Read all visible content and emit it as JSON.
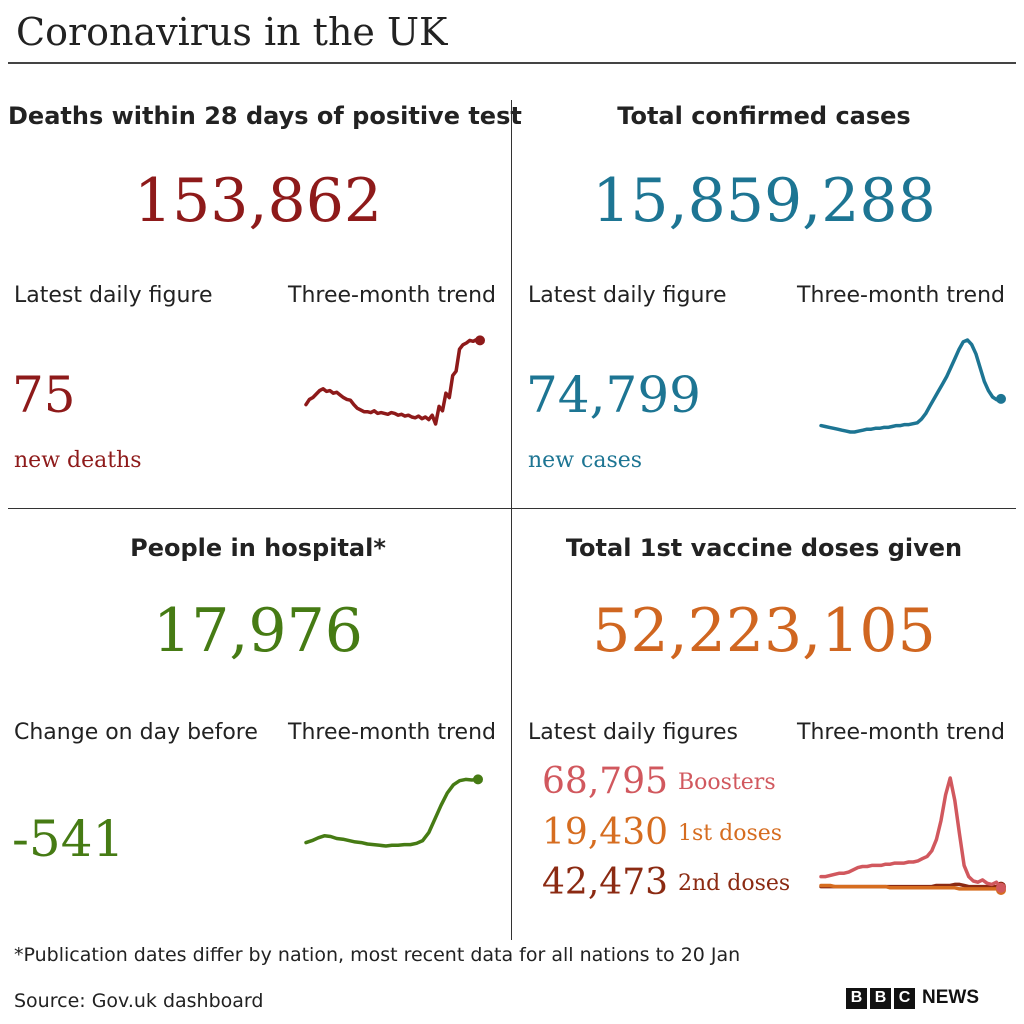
{
  "header": {
    "title": "Coronavirus in the UK"
  },
  "colors": {
    "deaths": "#8e1a1a",
    "cases": "#1d7593",
    "hospital": "#467b14",
    "vaccine": "#d06620",
    "boosters": "#d1585e",
    "first": "#d66d20",
    "second": "#8b2a12"
  },
  "deaths": {
    "heading": "Deaths within 28 days of positive test",
    "total": "153,862",
    "latest_label": "Latest daily figure",
    "trend_label": "Three-month trend",
    "latest_value": "75",
    "latest_unit": "new deaths"
  },
  "cases": {
    "heading": "Total confirmed cases",
    "total": "15,859,288",
    "latest_label": "Latest daily figure",
    "trend_label": "Three-month trend",
    "latest_value": "74,799",
    "latest_unit": "new cases"
  },
  "hospital": {
    "heading": "People in hospital*",
    "total": "17,976",
    "latest_label": "Change on day before",
    "trend_label": "Three-month trend",
    "latest_value": "-541"
  },
  "vaccine": {
    "heading": "Total 1st vaccine doses given",
    "total": "52,223,105",
    "latest_label": "Latest daily figures",
    "trend_label": "Three-month trend",
    "boosters_value": "68,795",
    "boosters_label": "Boosters",
    "first_value": "19,430",
    "first_label": "1st doses",
    "second_value": "42,473",
    "second_label": "2nd doses"
  },
  "footer": {
    "note": "*Publication dates differ by nation, most recent data for all nations to 20 Jan",
    "source": "Source: Gov.uk dashboard",
    "brand_letters": [
      "B",
      "B",
      "C"
    ],
    "brand_word": "NEWS"
  },
  "chart_data": [
    {
      "type": "line",
      "series": [
        {
          "values": [
            0.22,
            0.28,
            0.3,
            0.34,
            0.38,
            0.4,
            0.37,
            0.38,
            0.35,
            0.36,
            0.33,
            0.3,
            0.28,
            0.27,
            0.22,
            0.18,
            0.16,
            0.14,
            0.14,
            0.13,
            0.15,
            0.12,
            0.13,
            0.12,
            0.11,
            0.13,
            0.12,
            0.1,
            0.11,
            0.09,
            0.1,
            0.08,
            0.07,
            0.09,
            0.06,
            0.08,
            0.05,
            0.1,
            0.0,
            0.2,
            0.15,
            0.35,
            0.3,
            0.55,
            0.6,
            0.85,
            0.9,
            0.92,
            0.95,
            0.94,
            0.96,
            0.95
          ]
        }
      ]
    },
    {
      "type": "line",
      "series": [
        {
          "values": [
            0.07,
            0.06,
            0.05,
            0.04,
            0.03,
            0.02,
            0.01,
            0.0,
            0.0,
            0.01,
            0.02,
            0.03,
            0.03,
            0.04,
            0.04,
            0.05,
            0.05,
            0.06,
            0.07,
            0.07,
            0.08,
            0.08,
            0.09,
            0.1,
            0.14,
            0.2,
            0.28,
            0.36,
            0.44,
            0.52,
            0.6,
            0.7,
            0.8,
            0.9,
            0.98,
            1.0,
            0.95,
            0.85,
            0.7,
            0.55,
            0.45,
            0.38,
            0.35,
            0.36
          ]
        }
      ]
    },
    {
      "type": "line",
      "series": [
        {
          "values": [
            0.05,
            0.08,
            0.12,
            0.15,
            0.14,
            0.11,
            0.1,
            0.08,
            0.06,
            0.05,
            0.03,
            0.02,
            0.01,
            0.0,
            0.01,
            0.01,
            0.02,
            0.02,
            0.04,
            0.08,
            0.2,
            0.4,
            0.6,
            0.78,
            0.9,
            0.96,
            0.98,
            0.97,
            0.98
          ]
        }
      ]
    },
    {
      "type": "line",
      "series": [
        {
          "name": "Boosters",
          "values": [
            0.12,
            0.12,
            0.13,
            0.14,
            0.15,
            0.15,
            0.16,
            0.18,
            0.2,
            0.21,
            0.21,
            0.22,
            0.22,
            0.22,
            0.23,
            0.23,
            0.24,
            0.24,
            0.24,
            0.25,
            0.25,
            0.26,
            0.28,
            0.3,
            0.35,
            0.45,
            0.62,
            0.85,
            1.0,
            0.8,
            0.5,
            0.22,
            0.12,
            0.08,
            0.07,
            0.09,
            0.06,
            0.05,
            0.07,
            0.02
          ]
        },
        {
          "name": "1st doses",
          "values": [
            0.04,
            0.04,
            0.04,
            0.03,
            0.03,
            0.03,
            0.03,
            0.03,
            0.03,
            0.03,
            0.03,
            0.03,
            0.03,
            0.03,
            0.03,
            0.02,
            0.02,
            0.02,
            0.02,
            0.02,
            0.02,
            0.02,
            0.02,
            0.02,
            0.02,
            0.02,
            0.02,
            0.02,
            0.02,
            0.02,
            0.01,
            0.01,
            0.01,
            0.01,
            0.01,
            0.01,
            0.01,
            0.01,
            0.01,
            0.0
          ]
        },
        {
          "name": "2nd doses",
          "values": [
            0.03,
            0.03,
            0.03,
            0.03,
            0.03,
            0.03,
            0.03,
            0.03,
            0.03,
            0.03,
            0.03,
            0.03,
            0.03,
            0.03,
            0.03,
            0.03,
            0.03,
            0.03,
            0.03,
            0.03,
            0.03,
            0.03,
            0.03,
            0.03,
            0.03,
            0.04,
            0.04,
            0.04,
            0.04,
            0.05,
            0.05,
            0.04,
            0.03,
            0.03,
            0.03,
            0.03,
            0.03,
            0.03,
            0.03,
            0.03
          ]
        }
      ]
    }
  ]
}
